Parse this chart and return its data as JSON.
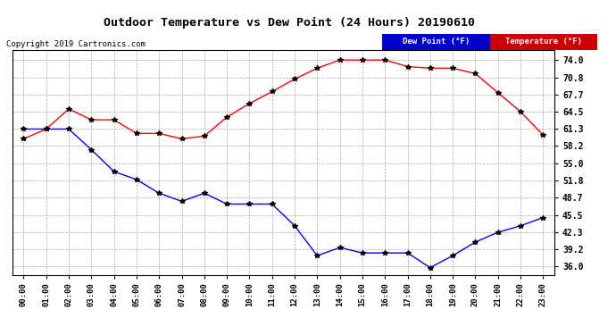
{
  "title": "Outdoor Temperature vs Dew Point (24 Hours) 20190610",
  "copyright": "Copyright 2019 Cartronics.com",
  "hours": [
    "00:00",
    "01:00",
    "02:00",
    "03:00",
    "04:00",
    "05:00",
    "06:00",
    "07:00",
    "08:00",
    "09:00",
    "10:00",
    "11:00",
    "12:00",
    "13:00",
    "14:00",
    "15:00",
    "16:00",
    "17:00",
    "18:00",
    "19:00",
    "20:00",
    "21:00",
    "22:00",
    "23:00"
  ],
  "temperature": [
    59.5,
    61.3,
    65.0,
    63.0,
    63.0,
    60.5,
    60.5,
    59.5,
    60.0,
    63.5,
    66.0,
    68.2,
    70.5,
    72.5,
    74.0,
    74.0,
    74.0,
    72.8,
    72.5,
    72.5,
    71.5,
    68.0,
    64.5,
    60.2
  ],
  "dew_point": [
    61.3,
    61.3,
    61.3,
    57.5,
    53.5,
    52.0,
    49.5,
    48.0,
    49.5,
    47.5,
    47.5,
    47.5,
    43.5,
    38.0,
    39.5,
    38.5,
    38.5,
    38.5,
    35.8,
    38.0,
    40.5,
    42.3,
    43.5,
    45.0
  ],
  "temp_color": "#ff0000",
  "dew_color": "#0000ff",
  "bg_color": "#ffffff",
  "plot_bg": "#ffffff",
  "grid_color": "#aaaaaa",
  "yticks": [
    36.0,
    39.2,
    42.3,
    45.5,
    48.7,
    51.8,
    55.0,
    58.2,
    61.3,
    64.5,
    67.7,
    70.8,
    74.0
  ],
  "ylim": [
    34.5,
    75.8
  ],
  "legend_dew_bg": "#0000cc",
  "legend_temp_bg": "#cc0000",
  "legend_dew_label": "Dew Point (°F)",
  "legend_temp_label": "Temperature (°F)"
}
